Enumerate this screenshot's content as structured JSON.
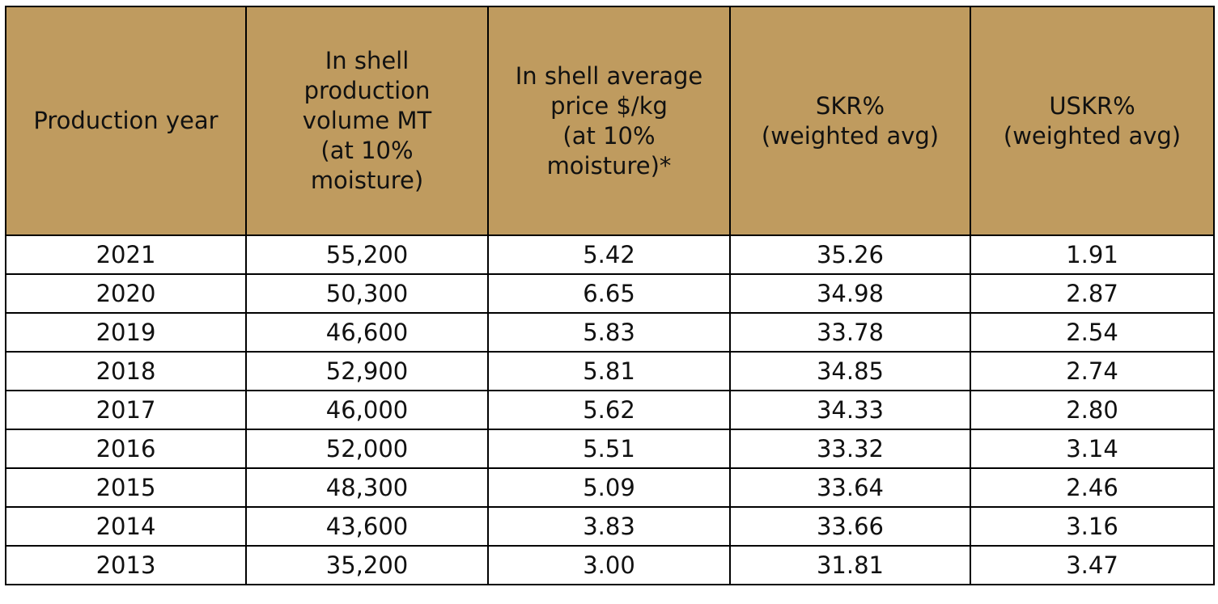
{
  "table": {
    "headers": [
      "Production year",
      "In shell\nproduction\nvolume MT\n(at 10%\nmoisture)",
      "In shell average\nprice $/kg\n(at 10%\nmoisture)*",
      "SKR%\n(weighted avg)",
      "USKR%\n(weighted avg)"
    ],
    "rows": [
      [
        "2021",
        "55,200",
        "5.42",
        "35.26",
        "1.91"
      ],
      [
        "2020",
        "50,300",
        "6.65",
        "34.98",
        "2.87"
      ],
      [
        "2019",
        "46,600",
        "5.83",
        "33.78",
        "2.54"
      ],
      [
        "2018",
        "52,900",
        "5.81",
        "34.85",
        "2.74"
      ],
      [
        "2017",
        "46,000",
        "5.62",
        "34.33",
        "2.80"
      ],
      [
        "2016",
        "52,000",
        "5.51",
        "33.32",
        "3.14"
      ],
      [
        "2015",
        "48,300",
        "5.09",
        "33.64",
        "2.46"
      ],
      [
        "2014",
        "43,600",
        "3.83",
        "33.66",
        "3.16"
      ],
      [
        "2013",
        "35,200",
        "3.00",
        "31.81",
        "3.47"
      ]
    ]
  },
  "colors": {
    "header_bg": "#bf9b5f",
    "border": "#000000",
    "cell_bg": "#ffffff"
  }
}
